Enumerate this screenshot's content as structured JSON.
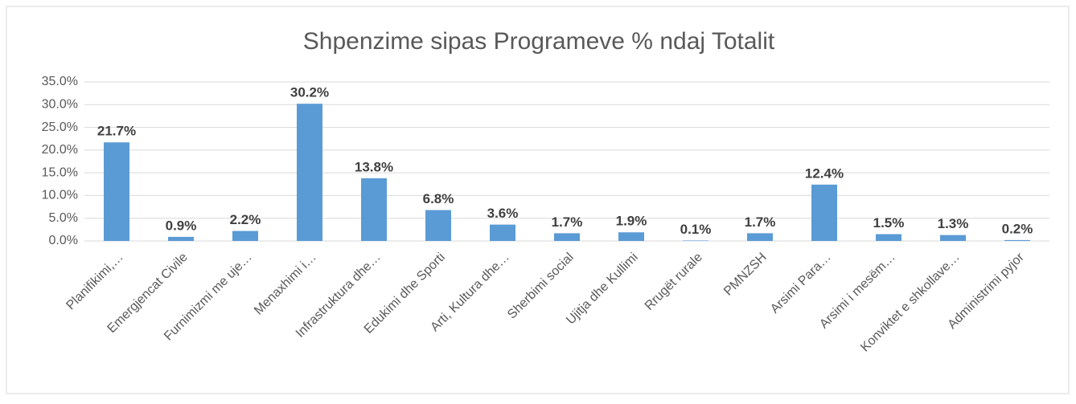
{
  "chart_data": {
    "type": "bar",
    "title": "Shpenzime sipas Programeve % ndaj Totalit",
    "categories": [
      "Planifikimi,…",
      "Emergjencat Civile",
      "Furnimizmi me uje…",
      "Menaxhimi i…",
      "Infrastruktura dhe…",
      "Edukimi dhe Sporti",
      "Arti, Kultura dhe…",
      "Sherbimi social",
      "Ujitja dhe Kullimi",
      "Rrugët rurale",
      "PMNZSH",
      "Arsimi Para…",
      "Arsimi i mesëm…",
      "Konviktet e shkollave…",
      "Administrimi pyjor"
    ],
    "values": [
      21.7,
      0.9,
      2.2,
      30.2,
      13.8,
      6.8,
      3.6,
      1.7,
      1.9,
      0.1,
      1.7,
      12.4,
      1.5,
      1.3,
      0.2
    ],
    "value_labels": [
      "21.7%",
      "0.9%",
      "2.2%",
      "30.2%",
      "13.8%",
      "6.8%",
      "3.6%",
      "1.7%",
      "1.9%",
      "0.1%",
      "1.7%",
      "12.4%",
      "1.5%",
      "1.3%",
      "0.2%"
    ],
    "color": "#5b9bd5",
    "ylim": [
      0,
      35
    ],
    "yticks": [
      {
        "value": 0,
        "label": "0.0%"
      },
      {
        "value": 5,
        "label": "5.0%"
      },
      {
        "value": 10,
        "label": "10.0%"
      },
      {
        "value": 15,
        "label": "15.0%"
      },
      {
        "value": 20,
        "label": "20.0%"
      },
      {
        "value": 25,
        "label": "25.0%"
      },
      {
        "value": 30,
        "label": "30.0%"
      },
      {
        "value": 35,
        "label": "35.0%"
      }
    ],
    "grid": true
  }
}
